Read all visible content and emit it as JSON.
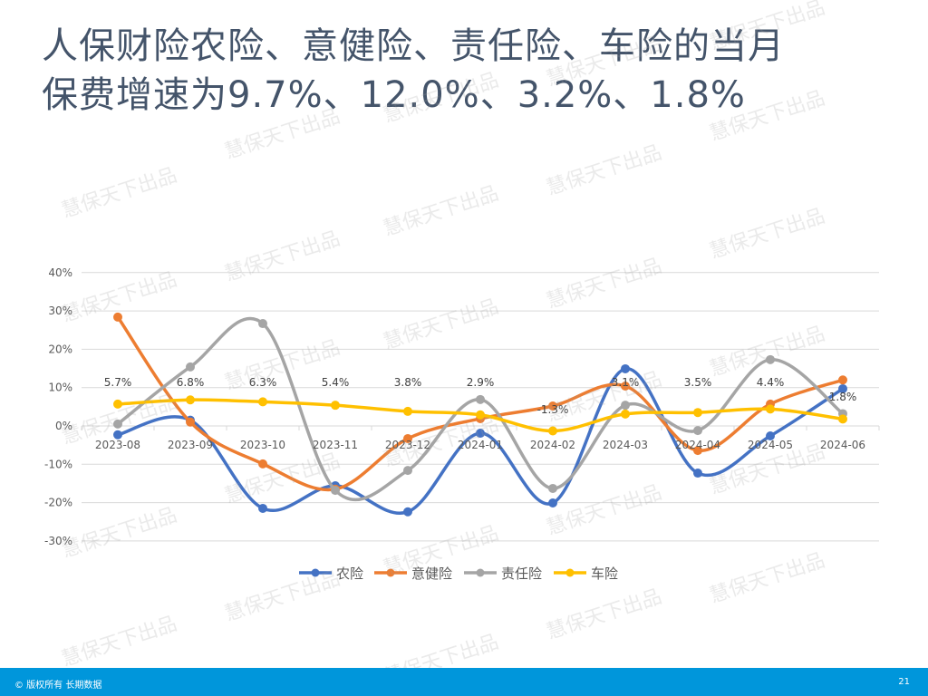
{
  "slide": {
    "title_line1": "人保财险农险、意健险、责任险、车险的当月",
    "title_line2": "保费增速为9.7%、12.0%、3.2%、1.8%",
    "footer_left": "© 版权所有 长期数据",
    "page_number": "21",
    "watermark": "慧保天下出品",
    "footer_color": "#0096db",
    "title_color": "#44546a"
  },
  "chart_data": {
    "type": "line",
    "title": "",
    "xlabel": "",
    "ylabel": "",
    "ylim": [
      -30,
      40
    ],
    "yticks": [
      "40%",
      "30%",
      "20%",
      "10%",
      "0%",
      "-10%",
      "-20%",
      "-30%"
    ],
    "grid": true,
    "legend_position": "bottom",
    "categories": [
      "2023-08",
      "2023-09",
      "2023-10",
      "2023-11",
      "2023-12",
      "2024-01",
      "2024-02",
      "2024-03",
      "2024-04",
      "2024-05",
      "2024-06"
    ],
    "series": [
      {
        "name": "农险",
        "color": "#4472c4",
        "values": [
          -2.3,
          1.5,
          -21.5,
          -15.6,
          -22.4,
          -1.9,
          -20.1,
          14.9,
          -12.3,
          -2.6,
          9.7
        ]
      },
      {
        "name": "意健险",
        "color": "#ed7d31",
        "values": [
          28.4,
          1.0,
          -9.9,
          -16.5,
          -3.3,
          1.9,
          5.2,
          10.4,
          -6.4,
          5.7,
          12.0
        ]
      },
      {
        "name": "责任险",
        "color": "#a5a5a5",
        "values": [
          0.5,
          15.4,
          26.7,
          -16.8,
          -11.6,
          6.9,
          -16.3,
          5.4,
          -1.2,
          17.3,
          3.2
        ]
      },
      {
        "name": "车险",
        "color": "#ffc000",
        "values": [
          5.7,
          6.8,
          6.3,
          5.4,
          3.8,
          2.9,
          -1.3,
          3.1,
          3.5,
          4.4,
          1.8
        ],
        "data_labels": [
          "5.7%",
          "6.8%",
          "6.3%",
          "5.4%",
          "3.8%",
          "2.9%",
          "-1.3%",
          "3.1%",
          "3.5%",
          "4.4%",
          "1.8%"
        ]
      }
    ]
  }
}
